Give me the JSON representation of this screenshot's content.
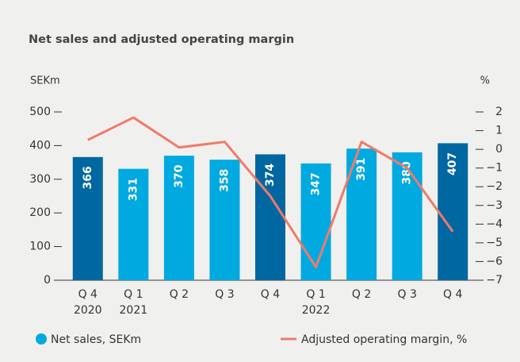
{
  "chart_data": {
    "type": "bar",
    "title": "Net sales and adjusted operating margin",
    "y_label": "SEKm",
    "y2_label": "%",
    "categories": [
      "Q 4",
      "Q 1",
      "Q 2",
      "Q 3",
      "Q 4",
      "Q 1",
      "Q 2",
      "Q 3",
      "Q 4"
    ],
    "category_years": [
      "2020",
      "2021",
      null,
      null,
      null,
      "2022",
      null,
      null,
      null
    ],
    "ylim": [
      0,
      500
    ],
    "yticks": [
      0,
      100,
      200,
      300,
      400,
      500
    ],
    "y2lim": [
      -7,
      2
    ],
    "y2ticks": [
      {
        "value": -7,
        "label": "−7"
      },
      {
        "value": -6,
        "label": "−6"
      },
      {
        "value": -5,
        "label": "−5"
      },
      {
        "value": -4,
        "label": "−4"
      },
      {
        "value": -3,
        "label": "−3"
      },
      {
        "value": -2,
        "label": "−2"
      },
      {
        "value": -1,
        "label": "−1"
      },
      0,
      1,
      2
    ],
    "series": [
      {
        "name": "Net sales, SEKm",
        "type": "bar",
        "color": "#00a9e0",
        "colors": [
          "#0067a0",
          "#00a9e0",
          "#00a9e0",
          "#00a9e0",
          "#0067a0",
          "#00a9e0",
          "#00a9e0",
          "#00a9e0",
          "#0067a0"
        ],
        "values": [
          366,
          331,
          370,
          358,
          374,
          347,
          391,
          380,
          407
        ]
      },
      {
        "name": "Adjusted operating margin, %",
        "type": "line",
        "axis": "y2",
        "color": "#f07a6a",
        "values": [
          0.5,
          1.7,
          0.1,
          0.4,
          -2.5,
          -6.3,
          0.4,
          -1.0,
          -4.4
        ]
      }
    ]
  }
}
